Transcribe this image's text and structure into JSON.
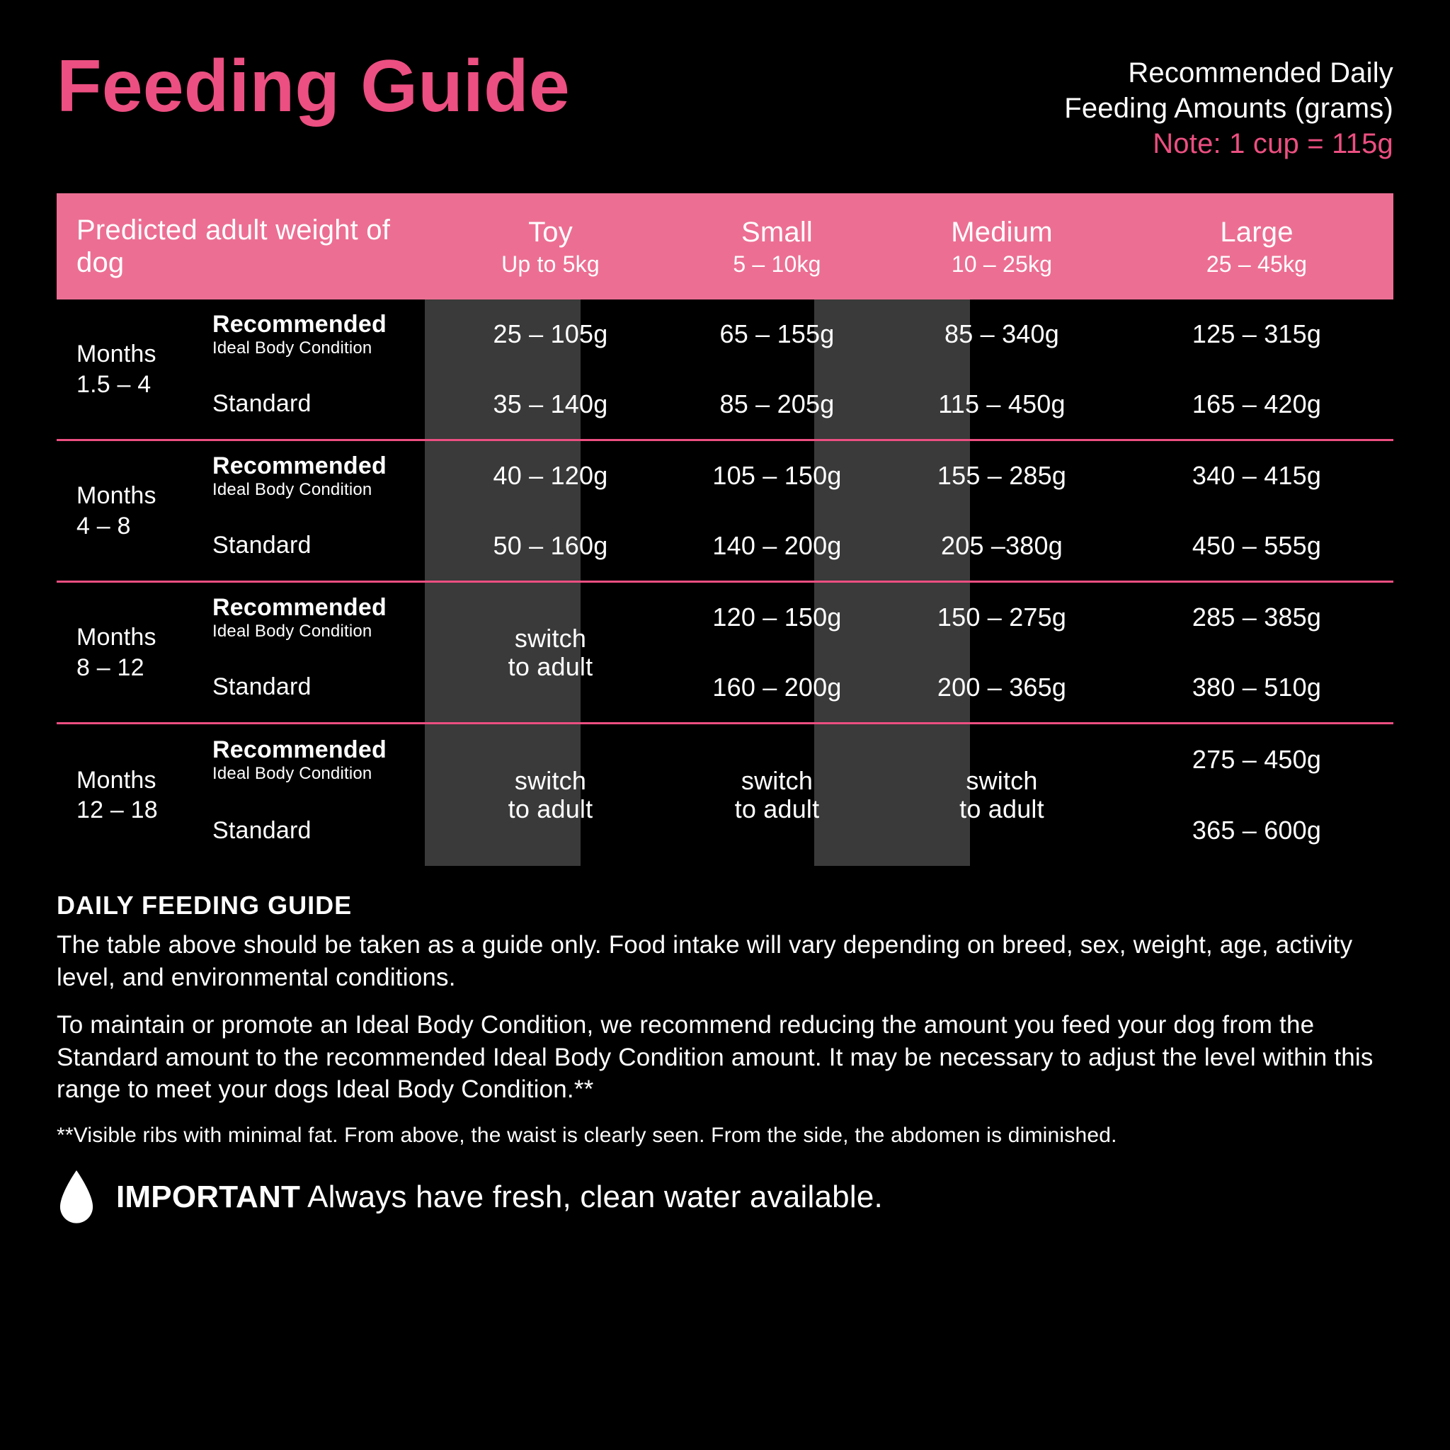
{
  "colors": {
    "background": "#000000",
    "accent": "#ec4f81",
    "header_bg": "#ec6f93",
    "stripe": "#3a3a3a",
    "text": "#ffffff"
  },
  "header": {
    "title": "Feeding Guide",
    "subtitle_line1": "Recommended Daily",
    "subtitle_line2": "Feeding Amounts (grams)",
    "note": "Note: 1 cup = 115g"
  },
  "table": {
    "row_label_title": "Predicted adult weight of dog",
    "sizes": [
      {
        "label": "Toy",
        "range": "Up to 5kg"
      },
      {
        "label": "Small",
        "range": "5 – 10kg"
      },
      {
        "label": "Medium",
        "range": "10 – 25kg"
      },
      {
        "label": "Large",
        "range": "25 – 45kg"
      }
    ],
    "row_type_labels": {
      "recommended": "Recommended",
      "recommended_sub": "Ideal Body Condition",
      "standard": "Standard"
    },
    "switch_line1": "switch",
    "switch_line2": "to adult",
    "ages": [
      {
        "label_line1": "Months",
        "label_line2": "1.5 – 4",
        "cells": [
          {
            "rec": "25 – 105g",
            "std": "35 – 140g"
          },
          {
            "rec": "65 – 155g",
            "std": "85 – 205g"
          },
          {
            "rec": "85 – 340g",
            "std": "115 – 450g"
          },
          {
            "rec": "125 – 315g",
            "std": "165 – 420g"
          }
        ]
      },
      {
        "label_line1": "Months",
        "label_line2": "4 – 8",
        "cells": [
          {
            "rec": "40 – 120g",
            "std": "50 – 160g"
          },
          {
            "rec": "105 – 150g",
            "std": "140 – 200g"
          },
          {
            "rec": "155 – 285g",
            "std": "205 –380g"
          },
          {
            "rec": "340 – 415g",
            "std": "450 – 555g"
          }
        ]
      },
      {
        "label_line1": "Months",
        "label_line2": "8 – 12",
        "cells": [
          {
            "switch": true
          },
          {
            "rec": "120 – 150g",
            "std": "160 – 200g"
          },
          {
            "rec": "150 – 275g",
            "std": "200 – 365g"
          },
          {
            "rec": "285 – 385g",
            "std": "380 – 510g"
          }
        ]
      },
      {
        "label_line1": "Months",
        "label_line2": "12 – 18",
        "cells": [
          {
            "switch": true
          },
          {
            "switch": true
          },
          {
            "switch": true
          },
          {
            "rec": "275 – 450g",
            "std": "365 – 600g"
          }
        ]
      }
    ]
  },
  "guide": {
    "heading": "DAILY FEEDING GUIDE",
    "p1": "The table above should be taken as a guide only. Food intake will vary depending on breed, sex, weight, age, activity level, and environmental conditions.",
    "p2": "To maintain or promote an Ideal Body Condition, we recommend reducing the amount you feed your dog from the Standard amount to the recommended Ideal Body Condition amount. It may be necessary to adjust the level within this range to meet your dogs Ideal Body Condition.**",
    "p3": "**Visible ribs with minimal fat. From above, the waist is clearly seen. From the side, the abdomen is diminished."
  },
  "important": {
    "label": "IMPORTANT",
    "text": "Always have fresh, clean water available."
  }
}
